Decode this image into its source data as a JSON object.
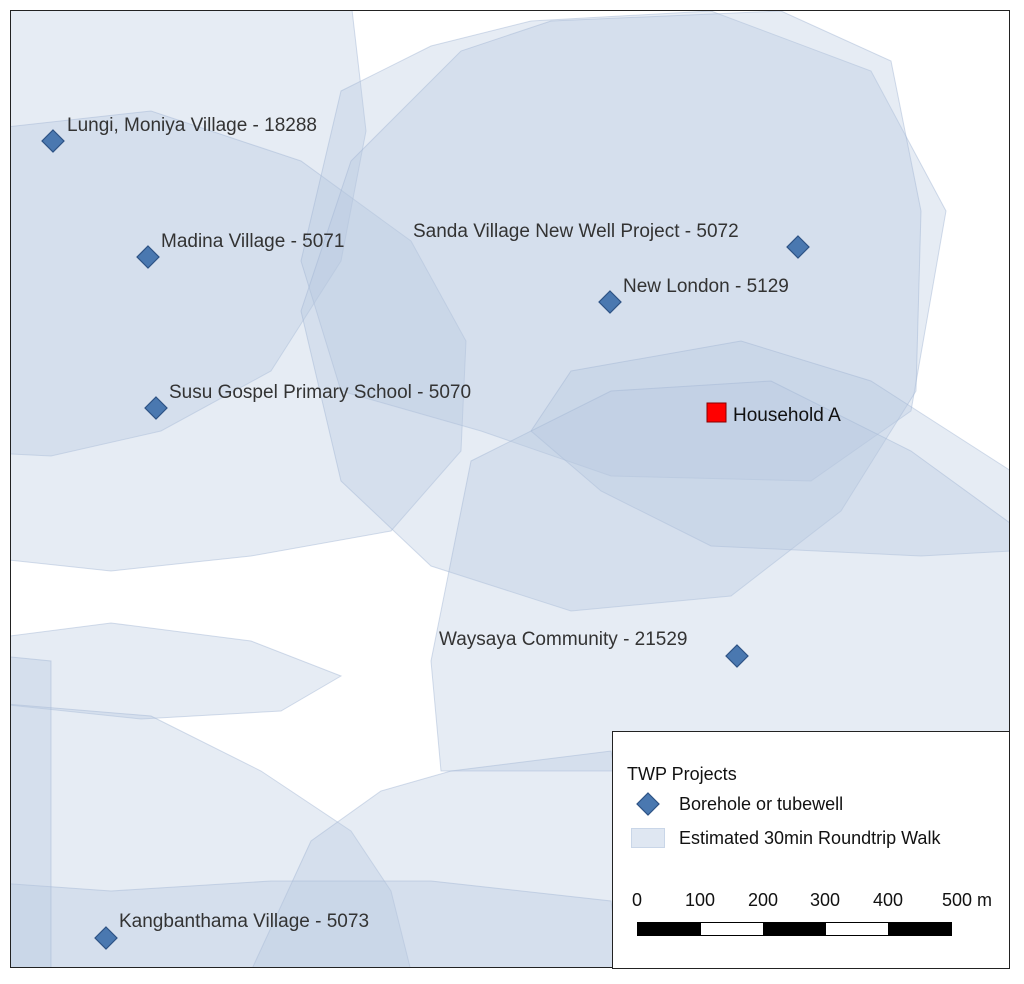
{
  "map": {
    "wells": [
      {
        "label": "Lungi, Moniya Village - 18288"
      },
      {
        "label": "Madina Village - 5071"
      },
      {
        "label": "Susu Gospel Primary School - 5070"
      },
      {
        "label": "Sanda Village New Well Project - 5072"
      },
      {
        "label": "New London - 5129"
      },
      {
        "label": "Waysaya Community - 21529"
      },
      {
        "label": "Kangbanthama Village - 5073"
      }
    ],
    "household": {
      "label": "Household A",
      "color": "#ff0000"
    }
  },
  "legend": {
    "title": "TWP Projects",
    "borehole_label": "Borehole or tubewell",
    "walk_label": "Estimated 30min Roundtrip Walk",
    "well_color": "#4a78b0",
    "zone_color": "#b6c8e0"
  },
  "scalebar": {
    "ticks": [
      "0",
      "100",
      "200",
      "300",
      "400",
      "500 m"
    ]
  }
}
